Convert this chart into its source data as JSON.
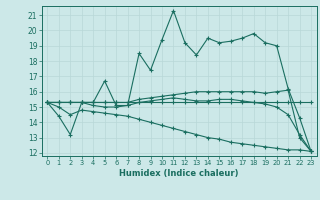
{
  "xlabel": "Humidex (Indice chaleur)",
  "bg_color": "#cce8e8",
  "grid_color": "#aacccc",
  "line_color": "#1a6e60",
  "xlim": [
    -0.5,
    23.5
  ],
  "ylim": [
    11.8,
    21.6
  ],
  "yticks": [
    12,
    13,
    14,
    15,
    16,
    17,
    18,
    19,
    20,
    21
  ],
  "xticks": [
    0,
    1,
    2,
    3,
    4,
    5,
    6,
    7,
    8,
    9,
    10,
    11,
    12,
    13,
    14,
    15,
    16,
    17,
    18,
    19,
    20,
    21,
    22,
    23
  ],
  "series": [
    [
      15.3,
      14.4,
      13.2,
      15.3,
      15.3,
      16.7,
      15.1,
      15.1,
      18.5,
      17.4,
      19.4,
      21.3,
      19.2,
      18.4,
      19.5,
      19.2,
      19.3,
      19.5,
      19.8,
      19.2,
      19.0,
      16.2,
      14.3,
      12.1
    ],
    [
      15.3,
      15.3,
      15.3,
      15.3,
      15.3,
      15.3,
      15.3,
      15.3,
      15.3,
      15.3,
      15.3,
      15.3,
      15.3,
      15.3,
      15.3,
      15.3,
      15.3,
      15.3,
      15.3,
      15.3,
      15.3,
      15.3,
      15.3,
      15.3
    ],
    [
      15.3,
      15.3,
      15.3,
      15.3,
      15.3,
      15.3,
      15.3,
      15.3,
      15.5,
      15.6,
      15.7,
      15.8,
      15.9,
      16.0,
      16.0,
      16.0,
      16.0,
      16.0,
      16.0,
      15.9,
      16.0,
      16.1,
      13.0,
      12.1
    ],
    [
      15.3,
      15.3,
      15.3,
      15.3,
      15.1,
      15.0,
      15.0,
      15.1,
      15.3,
      15.4,
      15.5,
      15.6,
      15.5,
      15.4,
      15.4,
      15.5,
      15.5,
      15.4,
      15.3,
      15.2,
      15.0,
      14.5,
      13.2,
      12.1
    ],
    [
      15.3,
      15.0,
      14.5,
      14.8,
      14.7,
      14.6,
      14.5,
      14.4,
      14.2,
      14.0,
      13.8,
      13.6,
      13.4,
      13.2,
      13.0,
      12.9,
      12.7,
      12.6,
      12.5,
      12.4,
      12.3,
      12.2,
      12.2,
      12.1
    ]
  ]
}
